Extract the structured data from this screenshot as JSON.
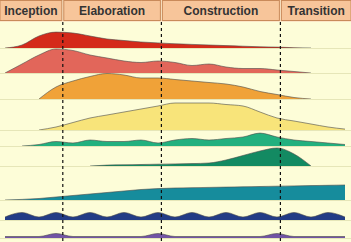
{
  "chart_data": {
    "type": "area",
    "tick_labels": false,
    "grid": false,
    "phases": [
      "Inception",
      "Elaboration",
      "Construction",
      "Transition"
    ],
    "phase_boundaries": [
      0,
      17,
      46,
      81,
      100
    ],
    "xlim": [
      0,
      100
    ],
    "ylim": [
      0,
      10
    ],
    "x": [
      0,
      5,
      10,
      15,
      20,
      25,
      30,
      35,
      40,
      45,
      50,
      55,
      60,
      65,
      70,
      75,
      80,
      85,
      90,
      95,
      100
    ],
    "series": [
      {
        "color": "#d42a1a",
        "values": [
          0,
          1,
          4,
          5.3,
          5,
          4,
          3,
          2.5,
          2,
          1.7,
          1.4,
          1.2,
          1,
          0.8,
          0.6,
          0.4,
          0.3,
          0.1,
          0,
          null,
          null
        ]
      },
      {
        "color": "#e2665a",
        "values": [
          0,
          3,
          6,
          8,
          7.5,
          6,
          5,
          4,
          3.5,
          4,
          3.5,
          2.5,
          3,
          2,
          1.5,
          1.5,
          1,
          0.5,
          0,
          null,
          null
        ]
      },
      {
        "color": "#f0a238",
        "values": [
          null,
          null,
          0,
          4,
          6,
          7.5,
          8.5,
          8,
          7,
          7,
          6.5,
          6,
          5.5,
          5,
          4,
          2.5,
          1.5,
          0.5,
          0,
          null,
          null
        ]
      },
      {
        "color": "#f8e47a",
        "values": [
          null,
          null,
          0,
          1,
          2.5,
          4,
          5,
          6,
          7,
          8,
          9,
          9,
          9,
          8.5,
          8,
          6,
          4,
          3,
          2,
          1,
          0.3
        ]
      },
      {
        "color": "#22b07e",
        "values": [
          null,
          0,
          0.5,
          1.5,
          1,
          2,
          1.5,
          1.5,
          2,
          1,
          2,
          2.5,
          2,
          2.5,
          3,
          4.3,
          3,
          2,
          1.5,
          1,
          0.5
        ]
      },
      {
        "color": "#138a62",
        "values": [
          null,
          null,
          null,
          null,
          null,
          0,
          0.3,
          0.4,
          0.5,
          0.6,
          0.7,
          0.8,
          1,
          2,
          3.5,
          5,
          6,
          4,
          0,
          null,
          null
        ]
      },
      {
        "color": "#168c9c",
        "values": [
          0,
          0.2,
          0.5,
          1,
          1.5,
          2,
          2.5,
          3,
          3.5,
          3.8,
          4,
          4.1,
          4.2,
          4.3,
          4.4,
          4.5,
          4.6,
          4.7,
          4.8,
          4.9,
          5
        ]
      },
      {
        "color": "#233c86",
        "values": [
          1,
          2.5,
          1,
          2.5,
          1,
          2.5,
          1,
          2.5,
          1,
          2.5,
          1,
          2.5,
          1,
          2.5,
          1,
          2.5,
          1,
          2.5,
          1,
          2.5,
          1
        ]
      },
      {
        "color": "#7254a4",
        "values": [
          0.5,
          0.5,
          0.5,
          1.5,
          0.5,
          0.5,
          0.5,
          0.5,
          0.5,
          1.5,
          0.5,
          0.5,
          0.5,
          0.5,
          0.5,
          0.5,
          1.5,
          0.5,
          0.5,
          0.5,
          0.5
        ]
      }
    ]
  }
}
